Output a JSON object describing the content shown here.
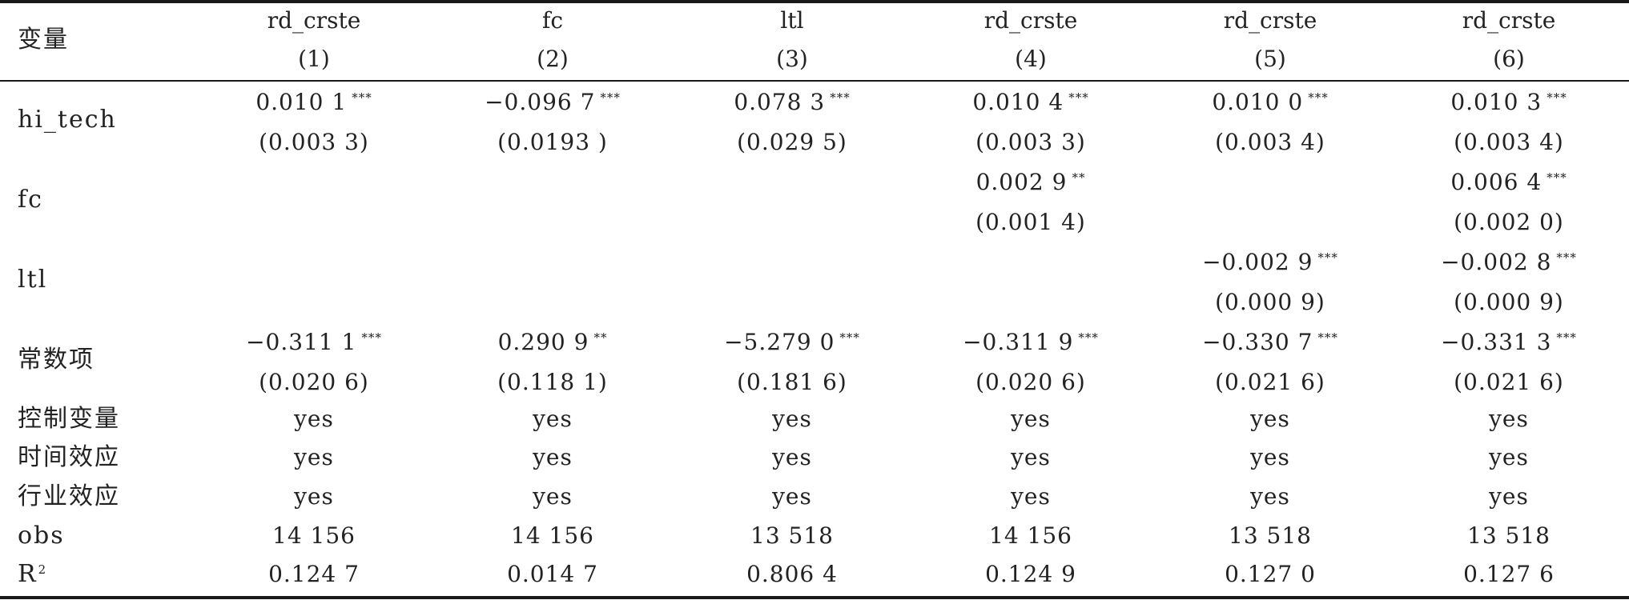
{
  "header": {
    "variable_label": "变量",
    "columns": [
      {
        "dep": "rd_crste",
        "num": "(1)"
      },
      {
        "dep": "fc",
        "num": "(2)"
      },
      {
        "dep": "ltl",
        "num": "(3)"
      },
      {
        "dep": "rd_crste",
        "num": "(4)"
      },
      {
        "dep": "rd_crste",
        "num": "(5)"
      },
      {
        "dep": "rd_crste",
        "num": "(6)"
      }
    ]
  },
  "rows": [
    {
      "label": "hi_tech",
      "coef": [
        "0.010 1",
        "−0.096 7",
        "0.078 3",
        "0.010 4",
        "0.010 0",
        "0.010 3"
      ],
      "stars": [
        "***",
        "***",
        "***",
        "***",
        "***",
        "***"
      ],
      "se": [
        "(0.003 3)",
        "(0.0193 )",
        "(0.029 5)",
        "(0.003 3)",
        "(0.003 4)",
        "(0.003 4)"
      ]
    },
    {
      "label": "fc",
      "coef": [
        "",
        "",
        "",
        "0.002 9",
        "",
        "0.006 4"
      ],
      "stars": [
        "",
        "",
        "",
        "**",
        "",
        "***"
      ],
      "se": [
        "",
        "",
        "",
        "(0.001 4)",
        "",
        "(0.002 0)"
      ]
    },
    {
      "label": "ltl",
      "coef": [
        "",
        "",
        "",
        "",
        "−0.002 9",
        "−0.002 8"
      ],
      "stars": [
        "",
        "",
        "",
        "",
        "***",
        "***"
      ],
      "se": [
        "",
        "",
        "",
        "",
        "(0.000 9)",
        "(0.000 9)"
      ]
    },
    {
      "label": "常数项",
      "coef": [
        "−0.311 1",
        "0.290 9",
        "−5.279 0",
        "−0.311 9",
        "−0.330 7",
        "−0.331 3"
      ],
      "stars": [
        "***",
        "**",
        "***",
        "***",
        "***",
        "***"
      ],
      "se": [
        "(0.020 6)",
        "(0.118 1)",
        "(0.181 6)",
        "(0.020 6)",
        "(0.021 6)",
        "(0.021 6)"
      ]
    }
  ],
  "simple_rows": [
    {
      "label": "控制变量",
      "values": [
        "yes",
        "yes",
        "yes",
        "yes",
        "yes",
        "yes"
      ]
    },
    {
      "label": "时间效应",
      "values": [
        "yes",
        "yes",
        "yes",
        "yes",
        "yes",
        "yes"
      ]
    },
    {
      "label": "行业效应",
      "values": [
        "yes",
        "yes",
        "yes",
        "yes",
        "yes",
        "yes"
      ]
    },
    {
      "label": "obs",
      "values": [
        "14 156",
        "14 156",
        "13 518",
        "14 156",
        "13 518",
        "13 518"
      ]
    }
  ],
  "r2": {
    "label": "R",
    "sup": "2",
    "values": [
      "0.124 7",
      "0.014 7",
      "0.806 4",
      "0.124 9",
      "0.127 0",
      "0.127 6"
    ]
  }
}
